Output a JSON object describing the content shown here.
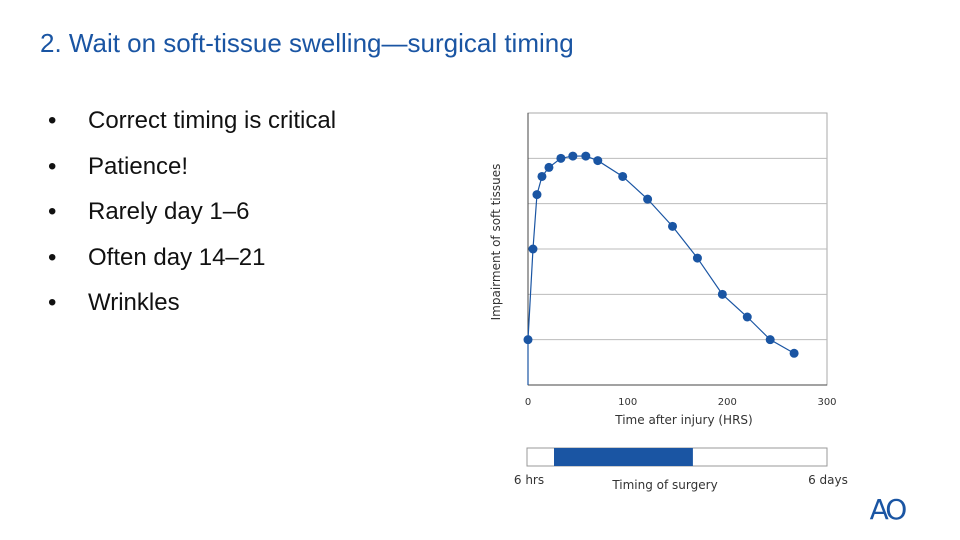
{
  "slide": {
    "title": "2. Wait on soft-tissue swelling—surgical timing",
    "bullets": [
      "Correct timing is critical",
      "Patience!",
      "Rarely day 1–6",
      "Often day 14–21",
      "Wrinkles"
    ],
    "bullet_glyph": "•"
  },
  "chart_data": {
    "type": "line",
    "title": "",
    "xlabel": "Time after injury (HRS)",
    "ylabel": "Impairment of soft tissues",
    "xlim": [
      0,
      300
    ],
    "ylim": [
      0,
      6
    ],
    "x_ticks": [
      0,
      100,
      200,
      300
    ],
    "y_ticks_labeled": false,
    "grid": true,
    "marker_color": "#1a55a3",
    "series": [
      {
        "x": [
          0,
          5,
          9,
          14,
          21,
          33,
          45,
          58,
          70,
          95,
          120,
          145,
          170,
          195,
          220,
          243,
          267
        ],
        "y": [
          1.0,
          3.0,
          4.2,
          4.6,
          4.8,
          5.0,
          5.05,
          5.05,
          4.95,
          4.6,
          4.1,
          3.5,
          2.8,
          2.0,
          1.5,
          1.0,
          0.7
        ]
      }
    ]
  },
  "surgery_timeline": {
    "label": "Timing of surgery",
    "start_label": "6 hrs",
    "end_label": "6 days",
    "bar_start_fraction": 0.09,
    "bar_end_fraction": 0.553,
    "bar_color": "#1a55a3"
  },
  "logo": {
    "text": "AO",
    "color": "#1a55a3"
  }
}
